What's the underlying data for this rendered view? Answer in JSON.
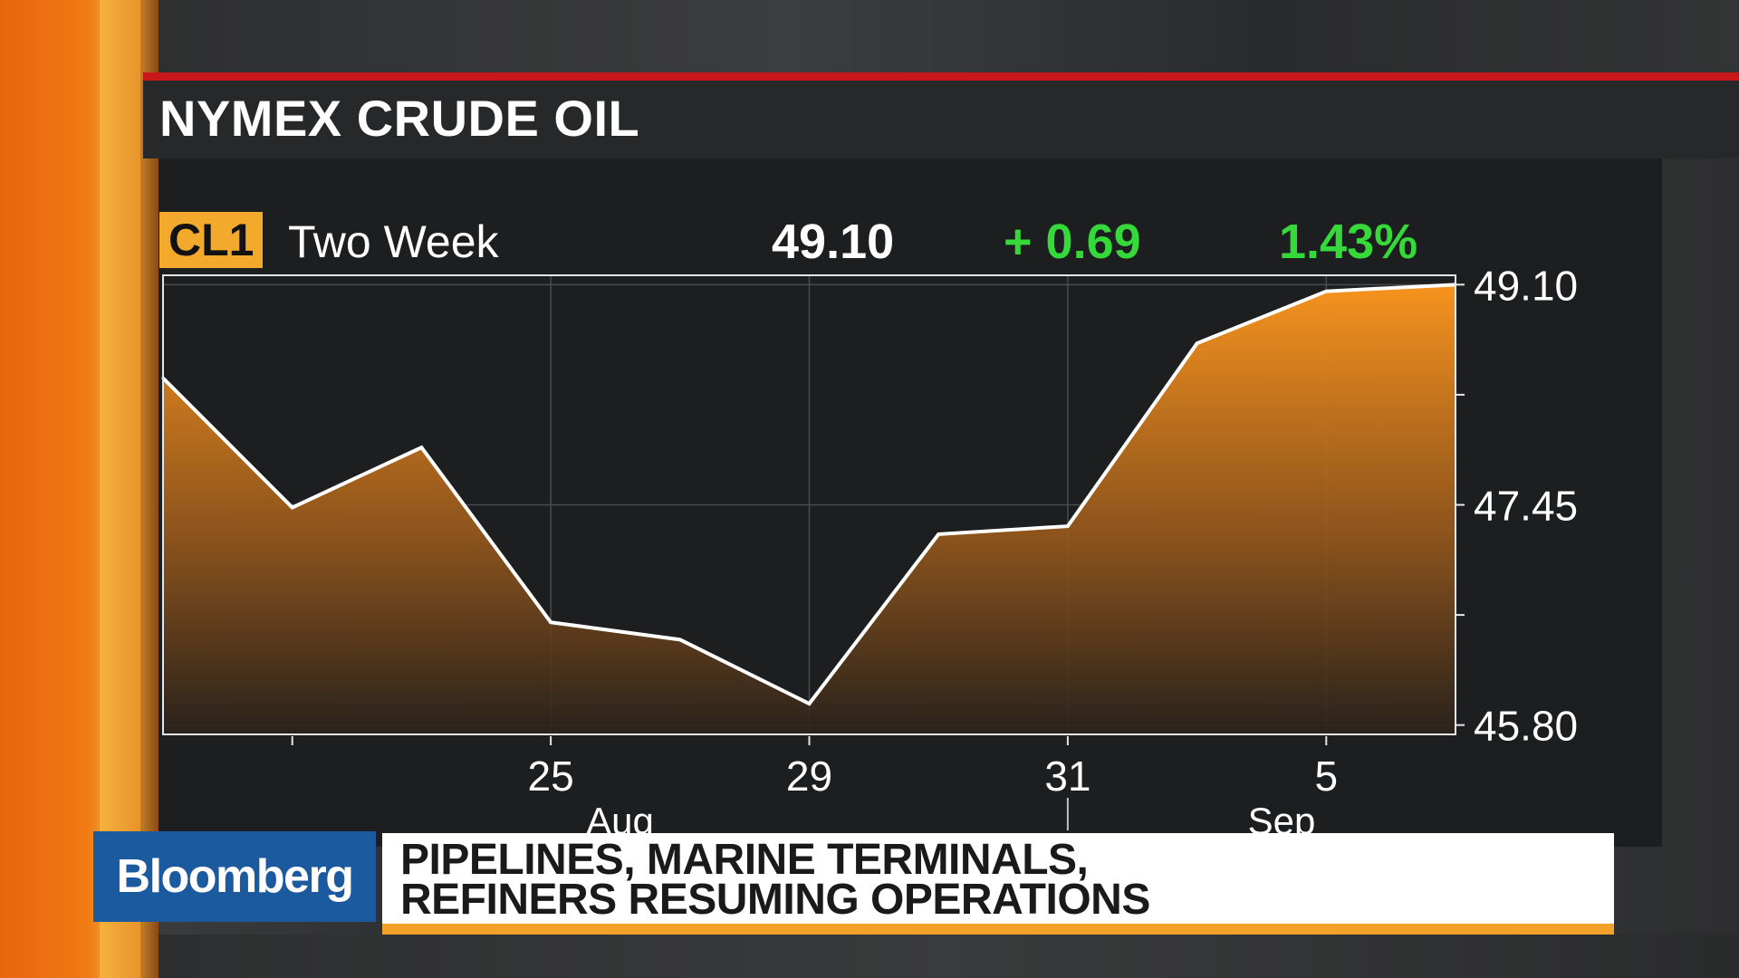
{
  "title": "NYMEX CRUDE OIL",
  "ticker": "CL1",
  "period": "Two Week",
  "last_price": "49.10",
  "net_change": "+ 0.69",
  "pct_change": "1.43%",
  "headline": {
    "line1": "PIPELINES, MARINE TERMINALS,",
    "line2": "REFINERS RESUMING OPERATIONS"
  },
  "brand": "Bloomberg",
  "colors": {
    "accent_orange": "#f3a92c",
    "positive_green": "#35d93a",
    "title_rule_red": "#c8171b",
    "brand_blue": "#1c5aa0"
  },
  "chart_data": {
    "type": "area",
    "title": "",
    "xlabel": "",
    "ylabel": "",
    "x": [
      "2017-08-22",
      "2017-08-23",
      "2017-08-24",
      "2017-08-25",
      "2017-08-28",
      "2017-08-29",
      "2017-08-30",
      "2017-08-31",
      "2017-09-01",
      "2017-09-05",
      "2017-09-06"
    ],
    "series": [
      {
        "values": [
          48.4,
          47.43,
          47.88,
          46.57,
          46.44,
          45.96,
          47.23,
          47.29,
          48.66,
          49.05,
          49.1
        ]
      }
    ],
    "ylim": [
      45.73,
      49.17
    ],
    "y_ticks": [
      "45.80",
      "47.45",
      "49.10"
    ],
    "x_tick_labels": [
      "25",
      "29",
      "31",
      "5"
    ],
    "x_tick_dates": [
      "2017-08-25",
      "2017-08-29",
      "2017-08-31",
      "2017-09-05"
    ],
    "month_labels": [
      "Aug",
      "Sep"
    ],
    "grid": true,
    "line_color": "#ffffff",
    "fill_color_top": "#f7931e"
  }
}
